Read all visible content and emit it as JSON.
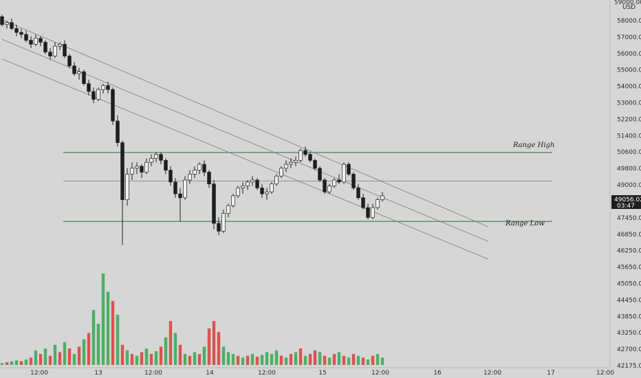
{
  "price_axis": {
    "currency": "USD",
    "top_label": "59000.00",
    "ticks": [
      "58000.00",
      "57000.00",
      "56000.00",
      "55000.00",
      "54000.00",
      "53000.00",
      "52200.00",
      "51400.00",
      "50600.00",
      "49800.00",
      "49000.00",
      "48200.00",
      "47450.00",
      "46850.00",
      "46250.00",
      "45650.00",
      "45050.00",
      "44450.00",
      "43850.00",
      "43250.00",
      "42700.00",
      "42175.00"
    ]
  },
  "time_axis": {
    "ticks": [
      "12:00",
      "13",
      "12:00",
      "14",
      "12:00",
      "15",
      "12:00",
      "16",
      "12:00",
      "17",
      "12:00"
    ]
  },
  "last_price": {
    "price": "49056.02",
    "countdown": "03:47",
    "color": "#1e1e1e"
  },
  "colors": {
    "background": "#d6d6d6",
    "bull_candle": "#f2f2f2",
    "bear_candle": "#1e1e1e",
    "volume_up": "#4caf64",
    "volume_down": "#d9534f",
    "level_line": "#2f6b3a",
    "mid_line": "#8f8f8f",
    "channel_line": "#7a7a7a"
  },
  "chart_data": {
    "type": "candlestick",
    "symbol_currency": "USD",
    "annotations": [
      "Range High",
      "Range Low"
    ],
    "levels": [
      {
        "label": "Range High",
        "price": 51300
      },
      {
        "label": "",
        "price": 49850
      },
      {
        "label": "Range Low",
        "price": 47800
      }
    ],
    "candles": [
      [
        58200,
        58300,
        57700,
        57800
      ],
      [
        57800,
        58000,
        57600,
        57900
      ],
      [
        57900,
        58100,
        57500,
        57600
      ],
      [
        57600,
        57800,
        57200,
        57400
      ],
      [
        57400,
        57600,
        57100,
        57300
      ],
      [
        57300,
        57500,
        56900,
        57000
      ],
      [
        57000,
        57200,
        56600,
        56800
      ],
      [
        56800,
        57300,
        56700,
        57100
      ],
      [
        57100,
        57200,
        56700,
        56900
      ],
      [
        56900,
        57000,
        56300,
        56400
      ],
      [
        56400,
        56600,
        56000,
        56200
      ],
      [
        56200,
        56900,
        56100,
        56700
      ],
      [
        56700,
        56900,
        56500,
        56800
      ],
      [
        56800,
        57000,
        56100,
        56200
      ],
      [
        56200,
        56300,
        55600,
        55700
      ],
      [
        55700,
        55900,
        55200,
        55300
      ],
      [
        55300,
        55600,
        55000,
        55400
      ],
      [
        55400,
        55500,
        54700,
        54800
      ],
      [
        54800,
        55000,
        54200,
        54400
      ],
      [
        54400,
        54600,
        53800,
        54000
      ],
      [
        54000,
        54600,
        53900,
        54500
      ],
      [
        54500,
        54800,
        54300,
        54700
      ],
      [
        54700,
        54900,
        54300,
        54500
      ],
      [
        54500,
        54600,
        52700,
        52900
      ],
      [
        52900,
        53200,
        51600,
        51800
      ],
      [
        51800,
        51900,
        46600,
        48900
      ],
      [
        48900,
        50500,
        48600,
        50200
      ],
      [
        50200,
        50800,
        49900,
        50500
      ],
      [
        50500,
        50800,
        50200,
        50600
      ],
      [
        50600,
        50700,
        50000,
        50300
      ],
      [
        50300,
        51000,
        50200,
        50800
      ],
      [
        50800,
        51200,
        50600,
        51000
      ],
      [
        51000,
        51300,
        50800,
        51200
      ],
      [
        51200,
        51300,
        50700,
        50900
      ],
      [
        50900,
        51000,
        50200,
        50400
      ],
      [
        50400,
        50600,
        49600,
        49800
      ],
      [
        49800,
        50000,
        49000,
        49200
      ],
      [
        49200,
        49500,
        47800,
        49000
      ],
      [
        49000,
        50100,
        48900,
        49900
      ],
      [
        49900,
        50400,
        49700,
        50200
      ],
      [
        50200,
        50600,
        50000,
        50400
      ],
      [
        50400,
        50800,
        50200,
        50700
      ],
      [
        50700,
        50900,
        50100,
        50300
      ],
      [
        50300,
        50400,
        49500,
        49700
      ],
      [
        49700,
        49900,
        47400,
        47700
      ],
      [
        47700,
        48000,
        47100,
        47300
      ],
      [
        47300,
        48400,
        47200,
        48200
      ],
      [
        48200,
        48700,
        48000,
        48600
      ],
      [
        48600,
        49200,
        48500,
        49100
      ],
      [
        49100,
        49600,
        49000,
        49500
      ],
      [
        49500,
        49800,
        49200,
        49600
      ],
      [
        49600,
        49900,
        49400,
        49800
      ],
      [
        49800,
        50100,
        49600,
        49900
      ],
      [
        49900,
        50000,
        49400,
        49500
      ],
      [
        49500,
        49700,
        49000,
        49200
      ],
      [
        49200,
        49500,
        48900,
        49300
      ],
      [
        49300,
        49800,
        49200,
        49700
      ],
      [
        49700,
        50200,
        49600,
        50100
      ],
      [
        50100,
        50600,
        50000,
        50500
      ],
      [
        50500,
        50900,
        50300,
        50700
      ],
      [
        50700,
        51000,
        50500,
        50800
      ],
      [
        50800,
        51100,
        50600,
        50900
      ],
      [
        50900,
        51500,
        50800,
        51400
      ],
      [
        51400,
        51600,
        51100,
        51200
      ],
      [
        51200,
        51300,
        50800,
        50900
      ],
      [
        50900,
        51000,
        50400,
        50500
      ],
      [
        50500,
        50600,
        49800,
        49900
      ],
      [
        49900,
        50000,
        49200,
        49300
      ],
      [
        49300,
        49700,
        49200,
        49600
      ],
      [
        49600,
        50000,
        49500,
        49900
      ],
      [
        49900,
        50200,
        49700,
        49800
      ],
      [
        49800,
        50800,
        49700,
        50700
      ],
      [
        50700,
        50800,
        50100,
        50200
      ],
      [
        50200,
        50300,
        49400,
        49500
      ],
      [
        49500,
        49700,
        48900,
        49000
      ],
      [
        49000,
        49200,
        48400,
        48500
      ],
      [
        48500,
        48700,
        47900,
        48000
      ],
      [
        48000,
        48700,
        47900,
        48500
      ],
      [
        48500,
        49000,
        48400,
        48900
      ],
      [
        48900,
        49300,
        48800,
        49100
      ]
    ],
    "volume": [
      [
        2,
        1
      ],
      [
        3,
        0
      ],
      [
        4,
        1
      ],
      [
        5,
        1
      ],
      [
        4,
        0
      ],
      [
        6,
        1
      ],
      [
        8,
        0
      ],
      [
        16,
        1
      ],
      [
        12,
        0
      ],
      [
        18,
        1
      ],
      [
        10,
        0
      ],
      [
        22,
        1
      ],
      [
        14,
        0
      ],
      [
        25,
        1
      ],
      [
        18,
        0
      ],
      [
        12,
        1
      ],
      [
        20,
        0
      ],
      [
        28,
        1
      ],
      [
        35,
        0
      ],
      [
        60,
        1
      ],
      [
        45,
        1
      ],
      [
        100,
        1
      ],
      [
        80,
        1
      ],
      [
        70,
        0
      ],
      [
        55,
        1
      ],
      [
        22,
        0
      ],
      [
        16,
        1
      ],
      [
        12,
        0
      ],
      [
        10,
        1
      ],
      [
        14,
        0
      ],
      [
        18,
        1
      ],
      [
        12,
        0
      ],
      [
        15,
        1
      ],
      [
        20,
        0
      ],
      [
        30,
        1
      ],
      [
        48,
        0
      ],
      [
        35,
        1
      ],
      [
        22,
        0
      ],
      [
        12,
        1
      ],
      [
        10,
        0
      ],
      [
        14,
        1
      ],
      [
        12,
        0
      ],
      [
        20,
        1
      ],
      [
        40,
        0
      ],
      [
        48,
        0
      ],
      [
        36,
        0
      ],
      [
        20,
        1
      ],
      [
        14,
        1
      ],
      [
        12,
        1
      ],
      [
        10,
        0
      ],
      [
        8,
        1
      ],
      [
        10,
        0
      ],
      [
        12,
        1
      ],
      [
        9,
        0
      ],
      [
        11,
        1
      ],
      [
        14,
        1
      ],
      [
        12,
        1
      ],
      [
        16,
        1
      ],
      [
        10,
        0
      ],
      [
        8,
        1
      ],
      [
        12,
        0
      ],
      [
        14,
        1
      ],
      [
        18,
        0
      ],
      [
        10,
        1
      ],
      [
        12,
        0
      ],
      [
        16,
        0
      ],
      [
        14,
        1
      ],
      [
        10,
        0
      ],
      [
        8,
        1
      ],
      [
        12,
        0
      ],
      [
        14,
        1
      ],
      [
        10,
        0
      ],
      [
        8,
        1
      ],
      [
        12,
        0
      ],
      [
        10,
        1
      ],
      [
        8,
        0
      ],
      [
        6,
        1
      ],
      [
        10,
        0
      ],
      [
        12,
        1
      ],
      [
        8,
        1
      ]
    ],
    "trendlines": [
      {
        "label": "",
        "from": [
          0,
          58050
        ],
        "to": [
          101,
          47520
        ]
      },
      {
        "label": "",
        "from": [
          0,
          57050
        ],
        "to": [
          101,
          46780
        ]
      },
      {
        "label": "",
        "from": [
          0,
          56050
        ],
        "to": [
          101,
          45880
        ]
      }
    ]
  }
}
